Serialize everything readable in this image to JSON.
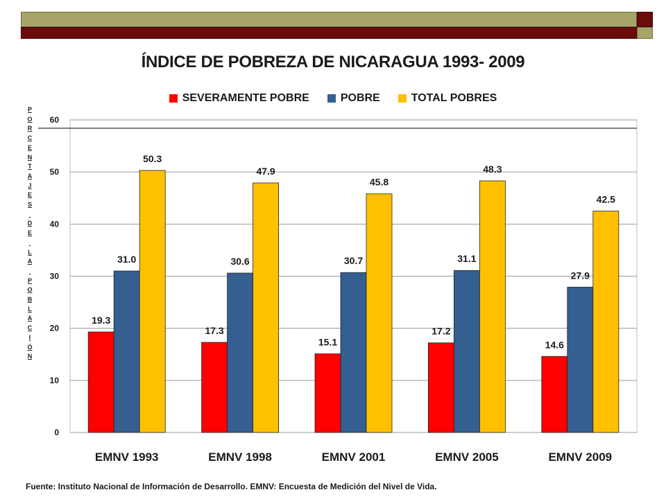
{
  "slide": {
    "title": "ÍNDICE DE POBREZA DE NICARAGUA 1993- 2009",
    "ylabel_letters": [
      "P",
      "O",
      "R",
      "C",
      "E",
      "N",
      "T",
      "A",
      "J",
      "E",
      "S",
      "",
      "D",
      "E",
      "",
      "L",
      "A",
      "",
      "P",
      "O",
      "B",
      "L",
      "A",
      "C",
      "I",
      "Ó",
      "N"
    ],
    "source_note": "Fuente: Instituto Nacional de Información de Desarrollo. EMNV: Encuesta de Medición del Nivel de Vida.",
    "colors": {
      "olive": "#a6a468",
      "maroon": "#6b0c0c"
    }
  },
  "chart_data": {
    "type": "bar",
    "title": "ÍNDICE DE POBREZA DE NICARAGUA 1993- 2009",
    "ylabel": "PORCENTAJES DE LA POBLACIÓN",
    "xlabel": "",
    "categories": [
      "EMNV 1993",
      "EMNV 1998",
      "EMNV 2001",
      "EMNV 2005",
      "EMNV 2009"
    ],
    "series": [
      {
        "name": "SEVERAMENTE POBRE",
        "color": "#ff0000",
        "values": [
          19.3,
          17.3,
          15.1,
          17.2,
          14.6
        ],
        "labels": [
          "19.3",
          "17.3",
          "15.1",
          "17.2",
          "14.6"
        ]
      },
      {
        "name": "POBRE",
        "color": "#355e91",
        "values": [
          31.0,
          30.6,
          30.7,
          31.1,
          27.9
        ],
        "labels": [
          "31.0",
          "30.6",
          "30.7",
          "31.1",
          "27.9"
        ]
      },
      {
        "name": "TOTAL POBRES",
        "color": "#ffc000",
        "values": [
          50.3,
          47.9,
          45.8,
          48.3,
          42.5
        ],
        "labels": [
          "50.3",
          "47.9",
          "45.8",
          "48.3",
          "42.5"
        ]
      }
    ],
    "ylim": [
      0,
      60
    ],
    "yticks": [
      "0",
      "10",
      "20",
      "30",
      "40",
      "50",
      "60"
    ],
    "grid": true,
    "legend": "top-center"
  }
}
